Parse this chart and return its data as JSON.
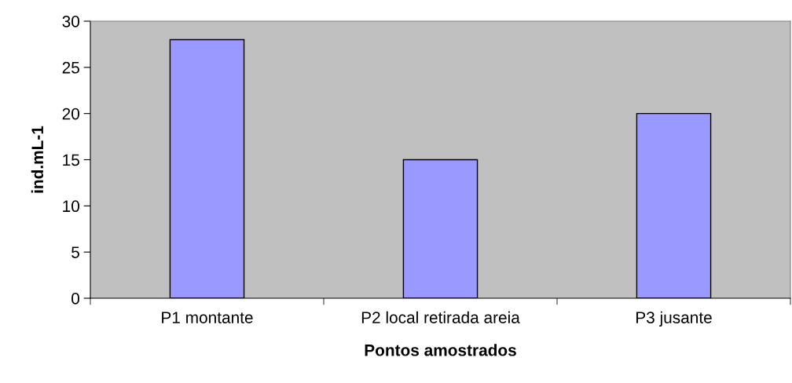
{
  "chart_data": {
    "type": "bar",
    "xlabel": "Pontos amostrados",
    "ylabel": "ind.mL-1",
    "categories": [
      "P1 montante",
      "P2 local retirada areia",
      "P3 jusante"
    ],
    "values": [
      28,
      15,
      20
    ],
    "color": "#9999ff",
    "ylim": [
      0,
      30
    ],
    "yticks": [
      0,
      5,
      10,
      15,
      20,
      25,
      30
    ],
    "grid": false,
    "legend": false
  }
}
